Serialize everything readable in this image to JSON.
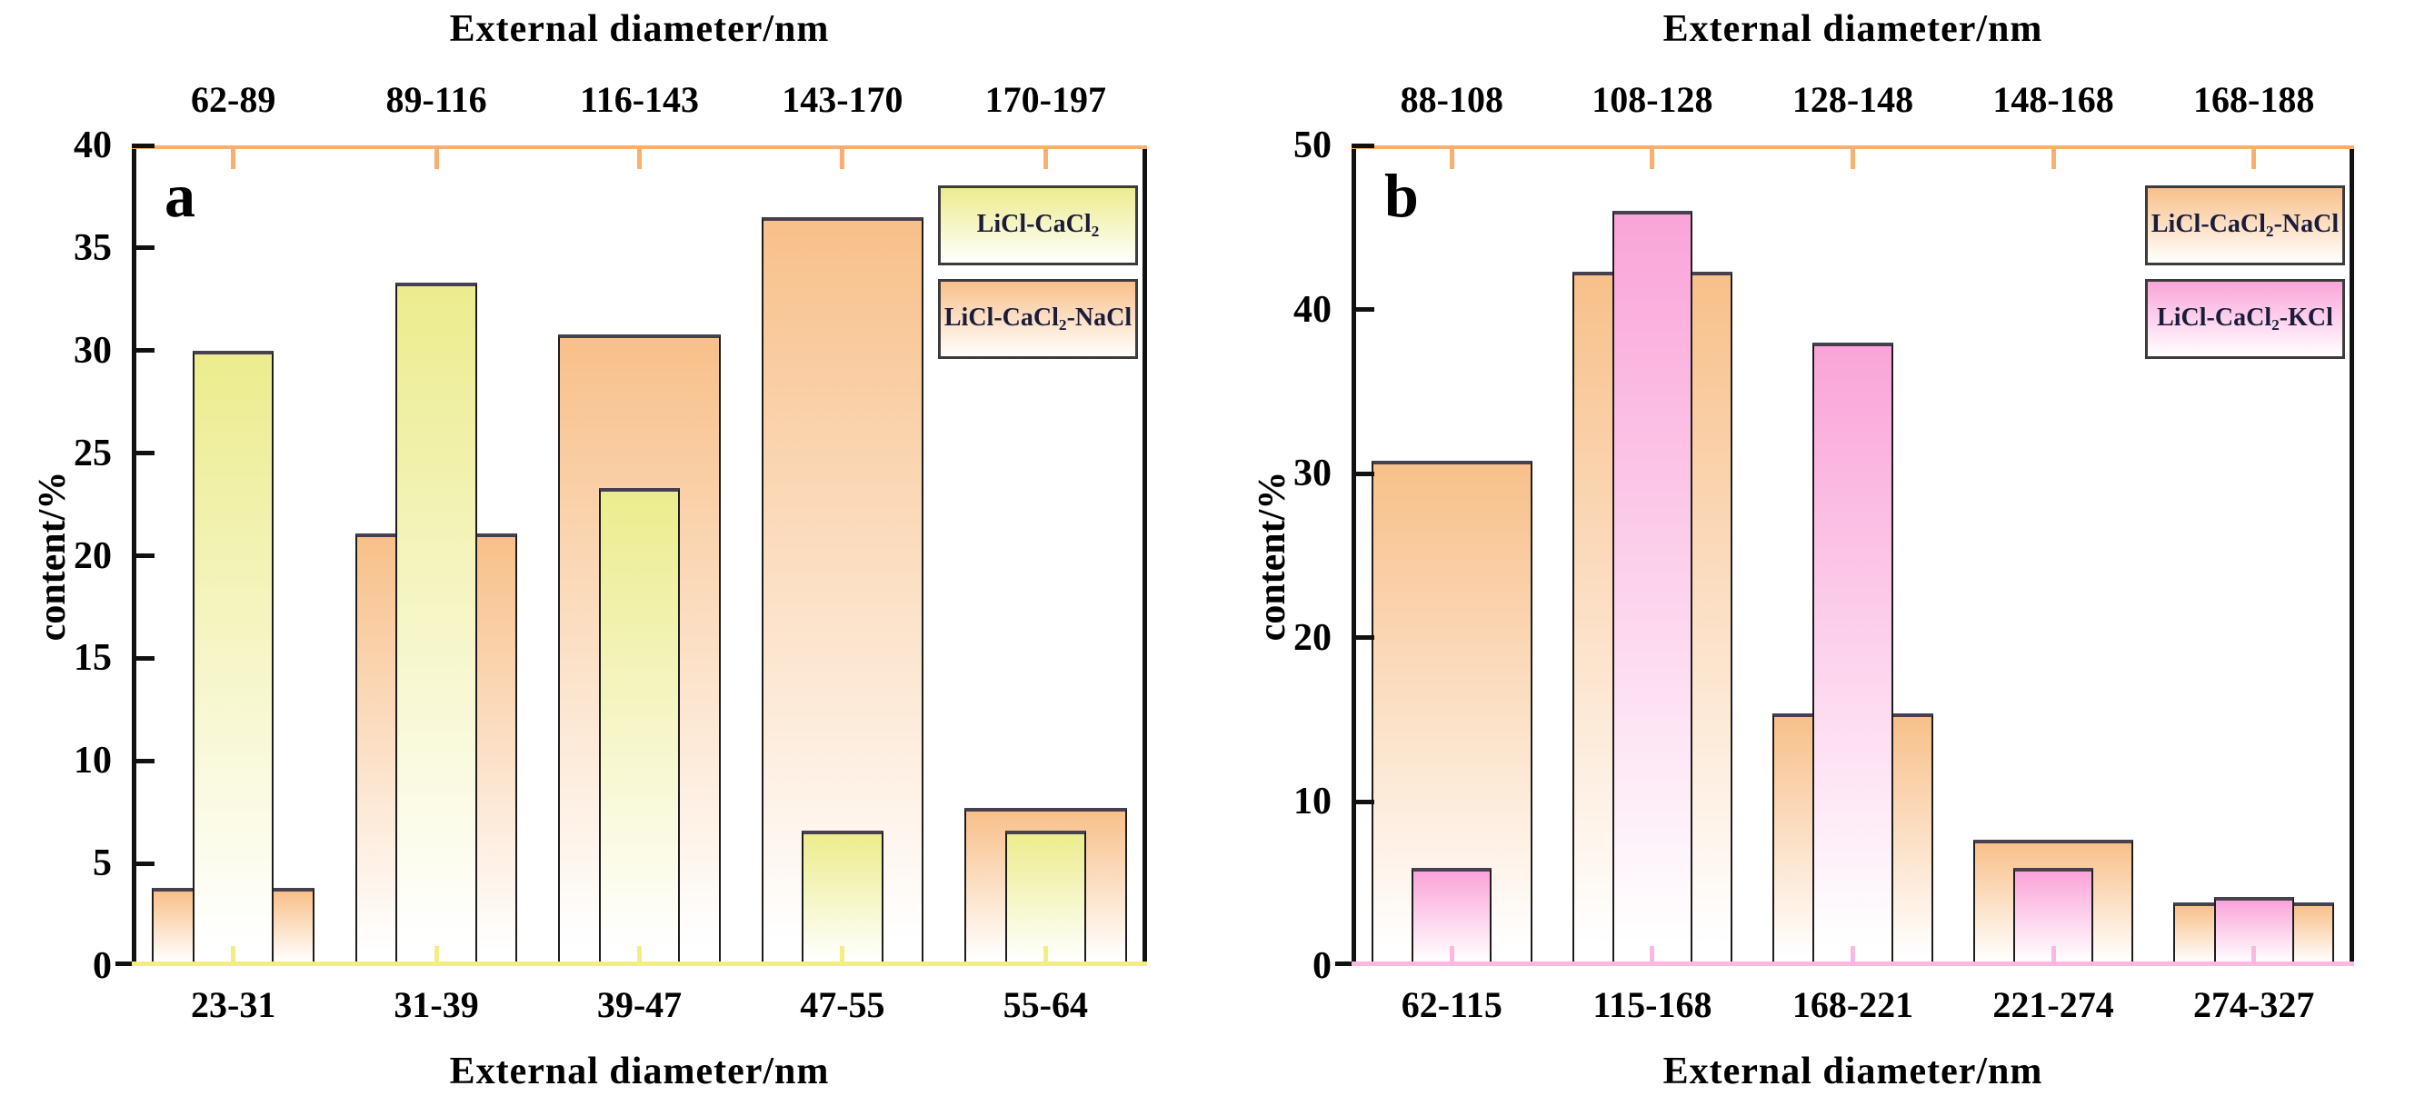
{
  "figure": {
    "background": "#FFFFFF"
  },
  "chart_data": [
    {
      "type": "bar",
      "panel_label": "a",
      "top_axis": {
        "title": "External diameter/nm",
        "categories": [
          "62-89",
          "89-116",
          "116-143",
          "143-170",
          "170-197"
        ]
      },
      "bottom_axis": {
        "title": "External diameter/nm",
        "categories": [
          "23-31",
          "31-39",
          "39-47",
          "47-55",
          "55-64"
        ]
      },
      "y_axis": {
        "title": "content/%",
        "min": 0,
        "max": 40,
        "ticks": [
          0,
          5,
          10,
          15,
          20,
          25,
          30,
          35,
          40
        ]
      },
      "series": [
        {
          "name": "LiCl-CaCl2-NaCl",
          "label_parts": [
            {
              "text": "LiCl-CaCl"
            },
            {
              "text": "2",
              "sub": true
            },
            {
              "text": "-NaCl"
            }
          ],
          "bar_style": "back",
          "top_color": "#F8C08A",
          "values": [
            3.8,
            21.1,
            30.8,
            36.5,
            7.7
          ]
        },
        {
          "name": "LiCl-CaCl2",
          "label_parts": [
            {
              "text": "LiCl-CaCl"
            },
            {
              "text": "2",
              "sub": true
            }
          ],
          "bar_style": "front",
          "top_color": "#ECEC8E",
          "values": [
            30.0,
            33.3,
            23.3,
            6.6,
            6.6
          ]
        }
      ],
      "legend_order": [
        "LiCl-CaCl2",
        "LiCl-CaCl2-NaCl"
      ],
      "axis_colors": {
        "top": "#F9B06E",
        "bottom": "#F2EE85",
        "left": "#111111",
        "right": "#111111"
      },
      "grid": false,
      "legend_position": "top-right"
    },
    {
      "type": "bar",
      "panel_label": "b",
      "top_axis": {
        "title": "External diameter/nm",
        "categories": [
          "88-108",
          "108-128",
          "128-148",
          "148-168",
          "168-188"
        ]
      },
      "bottom_axis": {
        "title": "External diameter/nm",
        "categories": [
          "62-115",
          "115-168",
          "168-221",
          "221-274",
          "274-327"
        ]
      },
      "y_axis": {
        "title": "content/%",
        "min": 0,
        "max": 50,
        "ticks": [
          0,
          10,
          20,
          30,
          40,
          50
        ]
      },
      "series": [
        {
          "name": "LiCl-CaCl2-NaCl",
          "label_parts": [
            {
              "text": "LiCl-CaCl"
            },
            {
              "text": "2",
              "sub": true
            },
            {
              "text": "-NaCl"
            }
          ],
          "bar_style": "back",
          "top_color": "#F8C08A",
          "values": [
            30.8,
            42.3,
            15.4,
            7.7,
            3.9
          ]
        },
        {
          "name": "LiCl-CaCl2-KCl",
          "label_parts": [
            {
              "text": "LiCl-CaCl"
            },
            {
              "text": "2",
              "sub": true
            },
            {
              "text": "-KCl"
            }
          ],
          "bar_style": "front",
          "top_color": "#FAA4D9",
          "values": [
            6.0,
            46.0,
            38.0,
            6.0,
            4.2
          ]
        }
      ],
      "legend_order": [
        "LiCl-CaCl2-NaCl",
        "LiCl-CaCl2-KCl"
      ],
      "axis_colors": {
        "top": "#F9B06E",
        "bottom": "#FBB9E2",
        "left": "#111111",
        "right": "#111111"
      },
      "grid": false,
      "legend_position": "top-right"
    }
  ]
}
